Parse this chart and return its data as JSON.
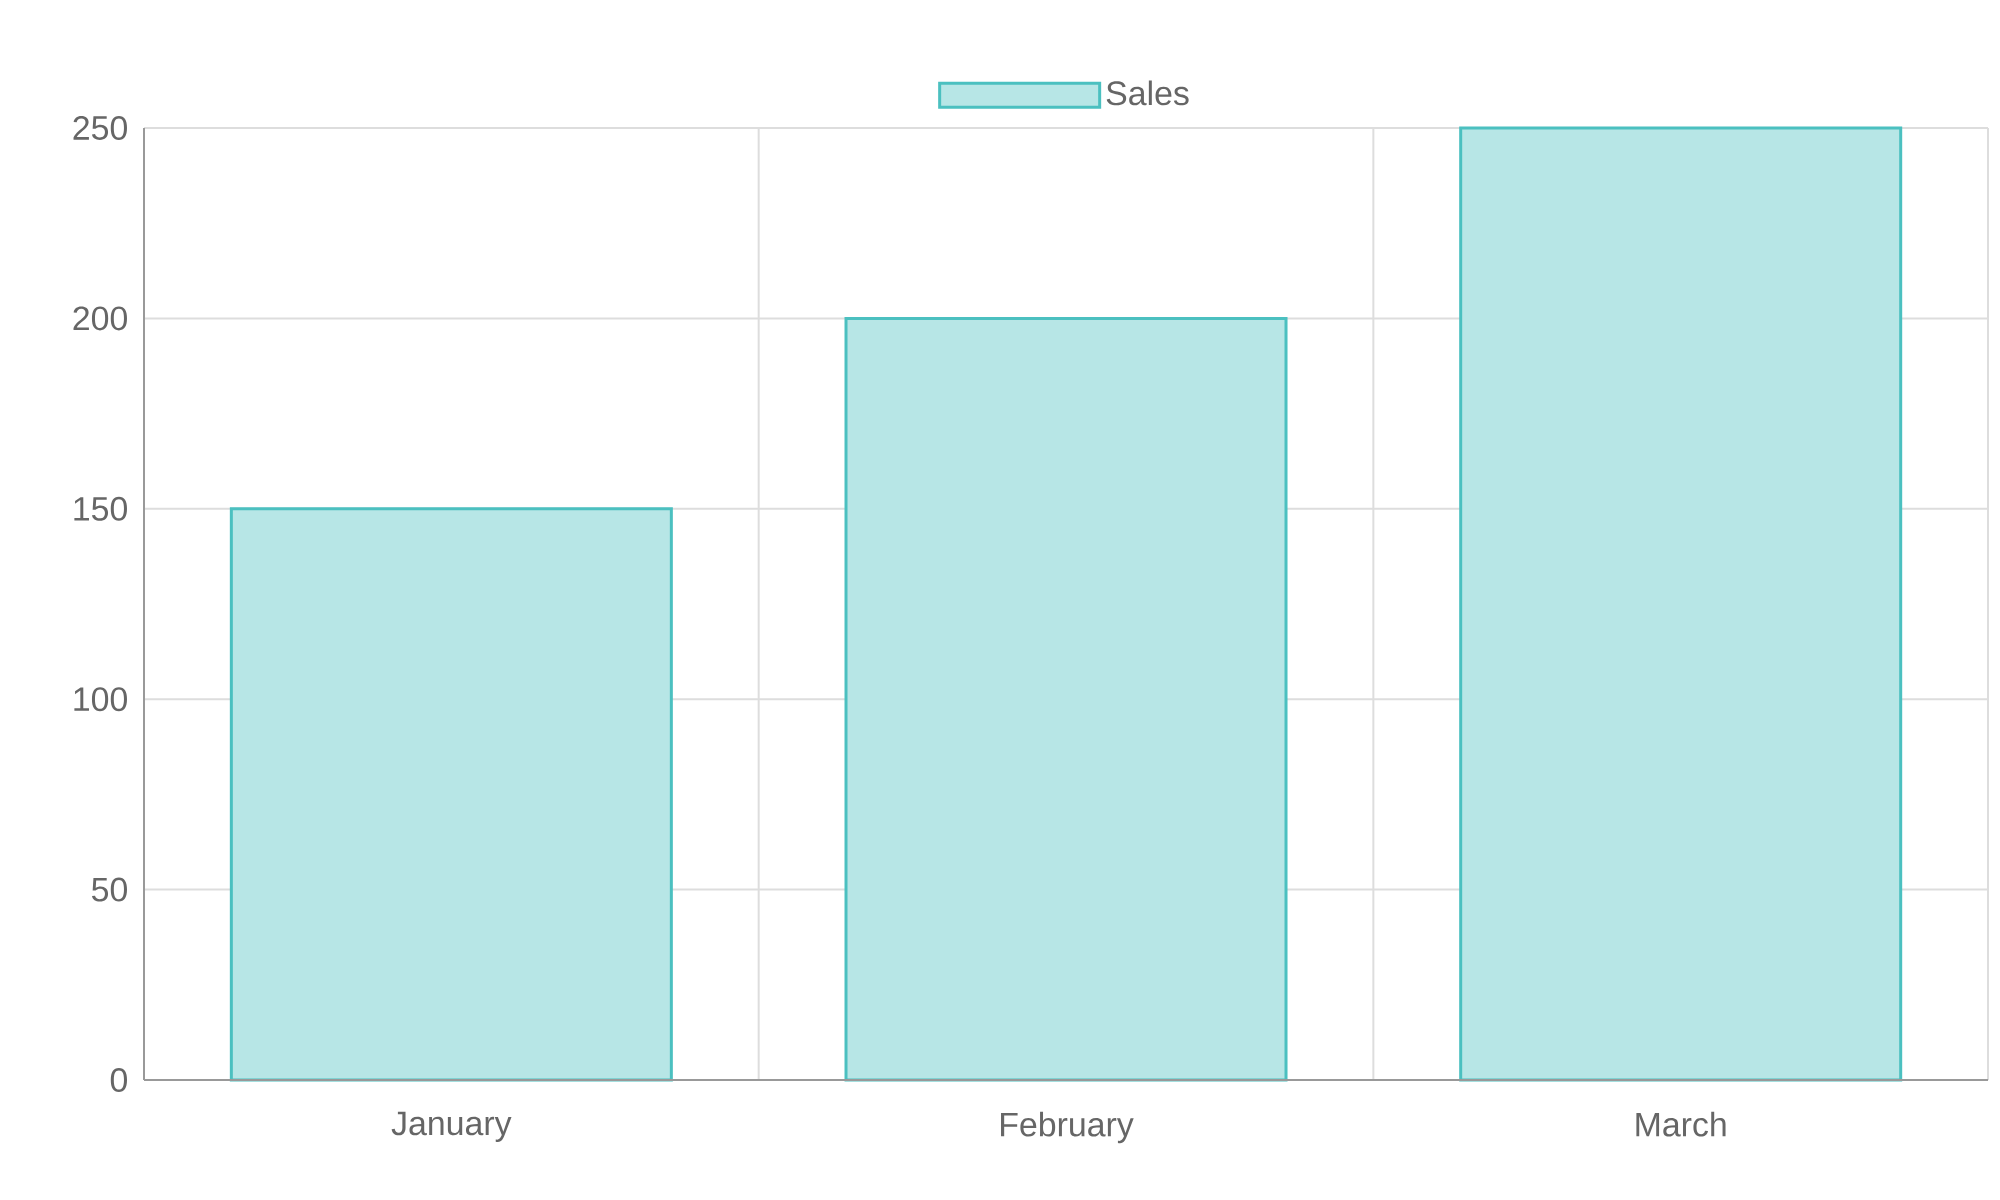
{
  "chart_data": {
    "type": "bar",
    "categories": [
      "January",
      "February",
      "March"
    ],
    "series": [
      {
        "name": "Sales",
        "color": "#4bc0c0",
        "values": [
          150,
          200,
          250
        ]
      }
    ],
    "ylim": [
      0,
      250
    ],
    "yticks": [
      0,
      50,
      100,
      150,
      200,
      250
    ],
    "grid": true,
    "legend": "top"
  }
}
